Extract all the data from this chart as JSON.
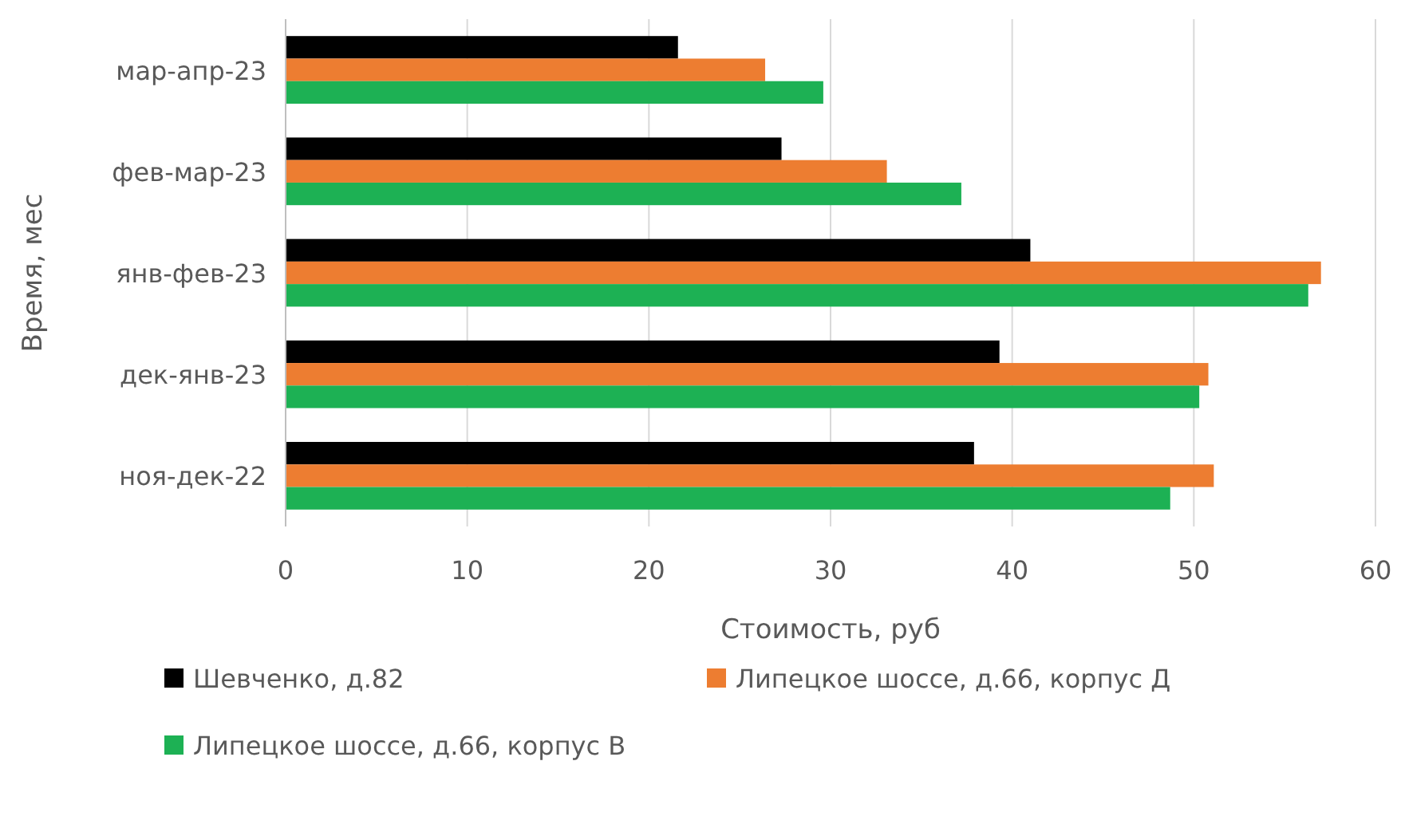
{
  "chart_data": {
    "type": "bar",
    "orientation": "horizontal",
    "xlabel": "Стоимость, руб",
    "ylabel": "Время, мес",
    "categories": [
      "мар-апр-23",
      "фев-мар-23",
      "янв-фев-23",
      "дек-янв-23",
      "ноя-дек-22"
    ],
    "series": [
      {
        "name": "Шевченко, д.82",
        "color": "#000000",
        "values": [
          21.6,
          27.3,
          41.0,
          39.3,
          37.9
        ]
      },
      {
        "name": "Липецкое шоссе, д.66, корпус Д",
        "color": "#ed7d31",
        "values": [
          26.4,
          33.1,
          57.0,
          50.8,
          51.1
        ]
      },
      {
        "name": "Липецкое шоссе, д.66, корпус В",
        "color": "#1db154",
        "values": [
          29.6,
          37.2,
          56.3,
          50.3,
          48.7
        ]
      }
    ],
    "xlim": [
      0,
      60
    ],
    "xticks": [
      0,
      10,
      20,
      30,
      40,
      50,
      60
    ],
    "grid": "x",
    "legend": "bottom"
  }
}
